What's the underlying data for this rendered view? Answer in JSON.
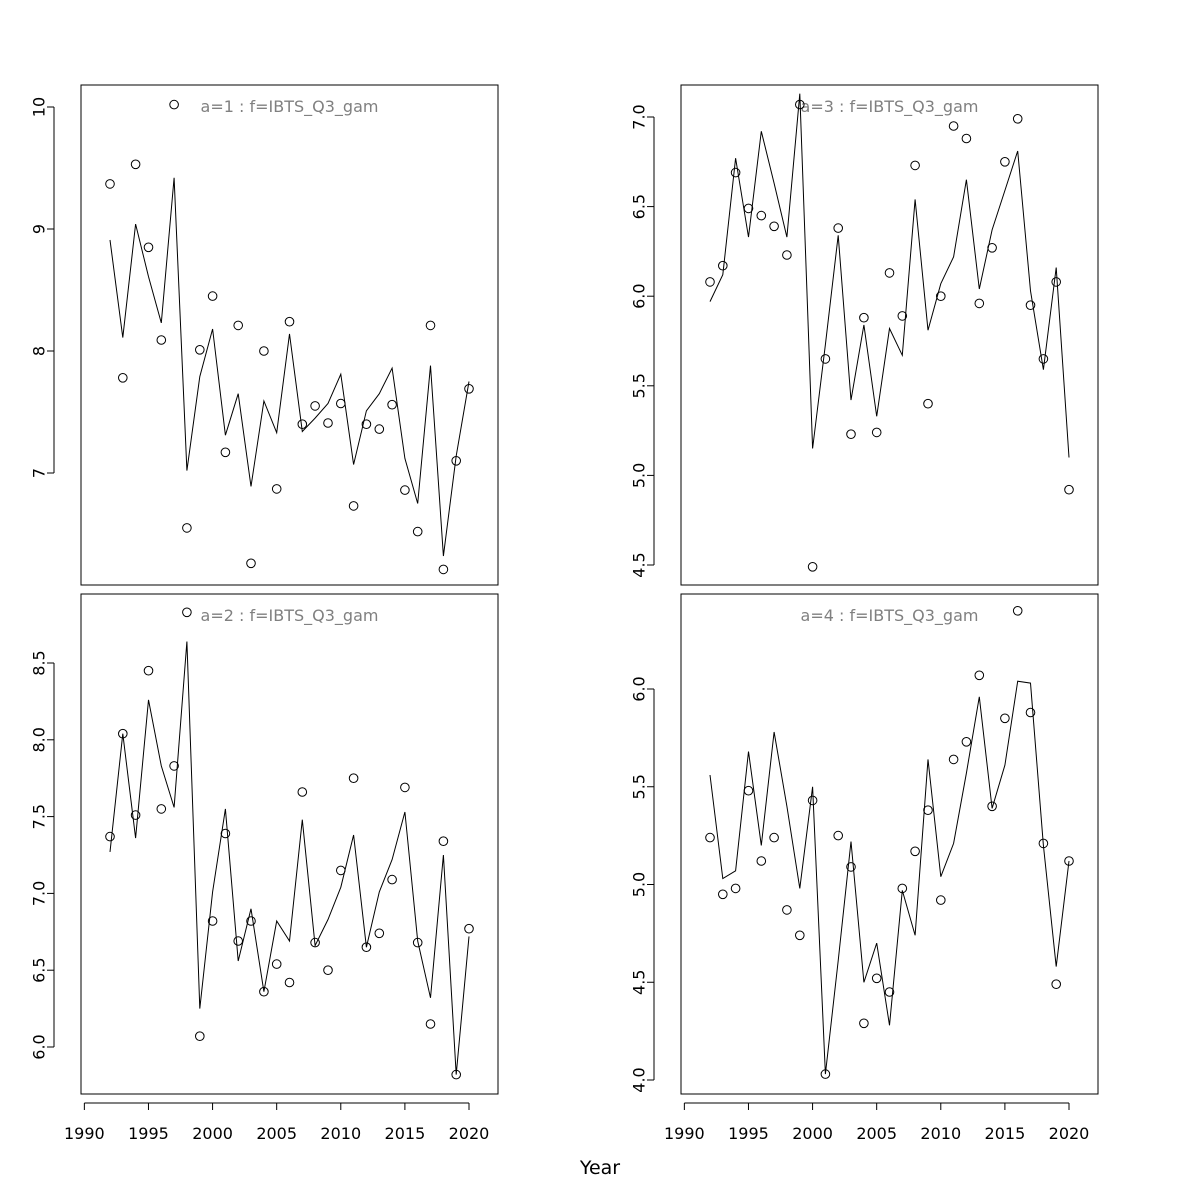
{
  "figure": {
    "xlabel": "Year"
  },
  "chart_data": [
    {
      "type": "scatter",
      "title": "a=1  :  f=IBTS_Q3_gam",
      "xlim": [
        1990,
        2020
      ],
      "ylim": [
        6.1,
        10.2
      ],
      "xticks": [
        1990,
        1995,
        2000,
        2005,
        2010,
        2015,
        2020
      ],
      "yticks": [
        7,
        8,
        9,
        10
      ],
      "x_tick_labels_shown": false,
      "years": [
        1992,
        1993,
        1994,
        1995,
        1996,
        1997,
        1998,
        1999,
        2000,
        2001,
        2002,
        2003,
        2004,
        2005,
        2006,
        2007,
        2008,
        2009,
        2010,
        2011,
        2012,
        2013,
        2014,
        2015,
        2016,
        2017,
        2018,
        2019,
        2020
      ],
      "observed": [
        9.37,
        7.78,
        9.53,
        8.85,
        8.09,
        10.02,
        6.55,
        8.01,
        8.45,
        7.17,
        8.21,
        6.26,
        8.0,
        6.87,
        8.24,
        7.4,
        7.55,
        7.41,
        7.57,
        6.73,
        7.4,
        7.36,
        7.56,
        6.86,
        6.52,
        8.21,
        6.21,
        7.1,
        7.69
      ],
      "fitted": [
        8.91,
        8.11,
        9.04,
        8.61,
        8.23,
        9.42,
        7.02,
        7.79,
        8.18,
        7.31,
        7.65,
        6.89,
        7.59,
        7.33,
        8.14,
        7.34,
        7.45,
        7.57,
        7.81,
        7.07,
        7.51,
        7.65,
        7.86,
        7.12,
        6.75,
        7.88,
        6.32,
        7.14,
        7.75
      ]
    },
    {
      "type": "scatter",
      "title": "a=3  :  f=IBTS_Q3_gam",
      "xlim": [
        1990,
        2020
      ],
      "ylim": [
        4.45,
        7.13
      ],
      "xticks": [
        1990,
        1995,
        2000,
        2005,
        2010,
        2015,
        2020
      ],
      "yticks": [
        4.5,
        5.0,
        5.5,
        6.0,
        6.5,
        7.0
      ],
      "x_tick_labels_shown": false,
      "years": [
        1992,
        1993,
        1994,
        1995,
        1996,
        1997,
        1998,
        1999,
        2000,
        2001,
        2002,
        2003,
        2004,
        2005,
        2006,
        2007,
        2008,
        2009,
        2010,
        2011,
        2012,
        2013,
        2014,
        2015,
        2016,
        2017,
        2018,
        2019,
        2020
      ],
      "observed": [
        6.08,
        6.17,
        6.69,
        6.49,
        6.45,
        6.39,
        6.23,
        7.07,
        4.49,
        5.65,
        6.38,
        5.23,
        5.88,
        5.24,
        6.13,
        5.89,
        6.73,
        5.4,
        6.0,
        6.95,
        6.88,
        5.96,
        6.27,
        6.75,
        6.99,
        5.95,
        5.65,
        6.08,
        4.92
      ],
      "fitted": [
        5.97,
        6.12,
        6.77,
        6.33,
        6.92,
        6.63,
        6.33,
        7.13,
        5.15,
        5.73,
        6.34,
        5.42,
        5.84,
        5.33,
        5.82,
        5.67,
        6.54,
        5.81,
        6.07,
        6.22,
        6.65,
        6.04,
        6.37,
        6.59,
        6.81,
        6.03,
        5.59,
        6.16,
        5.1
      ]
    },
    {
      "type": "scatter",
      "title": "a=2  :  f=IBTS_Q3_gam",
      "xlim": [
        1990,
        2020
      ],
      "ylim": [
        5.8,
        8.83
      ],
      "xticks": [
        1990,
        1995,
        2000,
        2005,
        2010,
        2015,
        2020
      ],
      "yticks": [
        6.0,
        6.5,
        7.0,
        7.5,
        8.0,
        8.5
      ],
      "x_tick_labels_shown": true,
      "years": [
        1992,
        1993,
        1994,
        1995,
        1996,
        1997,
        1998,
        1999,
        2000,
        2001,
        2002,
        2003,
        2004,
        2005,
        2006,
        2007,
        2008,
        2009,
        2010,
        2011,
        2012,
        2013,
        2014,
        2015,
        2016,
        2017,
        2018,
        2019,
        2020
      ],
      "observed": [
        7.37,
        8.04,
        7.51,
        8.45,
        7.55,
        7.83,
        8.83,
        6.07,
        6.82,
        7.39,
        6.69,
        6.82,
        6.36,
        6.54,
        6.42,
        7.66,
        6.68,
        6.5,
        7.15,
        7.75,
        6.65,
        6.74,
        7.09,
        7.69,
        6.68,
        6.15,
        7.34,
        5.82,
        6.77
      ],
      "fitted": [
        7.27,
        8.04,
        7.36,
        8.26,
        7.83,
        7.56,
        8.64,
        6.25,
        7.01,
        7.55,
        6.56,
        6.9,
        6.36,
        6.82,
        6.69,
        7.48,
        6.66,
        6.83,
        7.04,
        7.38,
        6.65,
        7.01,
        7.22,
        7.53,
        6.69,
        6.32,
        7.25,
        5.82,
        6.72
      ]
    },
    {
      "type": "scatter",
      "title": "a=4  :  f=IBTS_Q3_gam",
      "xlim": [
        1990,
        2020
      ],
      "ylim": [
        3.97,
        6.41
      ],
      "xticks": [
        1990,
        1995,
        2000,
        2005,
        2010,
        2015,
        2020
      ],
      "yticks": [
        4.0,
        4.5,
        5.0,
        5.5,
        6.0
      ],
      "x_tick_labels_shown": true,
      "years": [
        1992,
        1993,
        1994,
        1995,
        1996,
        1997,
        1998,
        1999,
        2000,
        2001,
        2002,
        2003,
        2004,
        2005,
        2006,
        2007,
        2008,
        2009,
        2010,
        2011,
        2012,
        2013,
        2014,
        2015,
        2016,
        2017,
        2018,
        2019,
        2020
      ],
      "observed": [
        5.24,
        4.95,
        4.98,
        5.48,
        5.12,
        5.24,
        4.87,
        4.74,
        5.43,
        4.03,
        5.25,
        5.09,
        4.29,
        4.52,
        4.45,
        4.98,
        5.17,
        5.38,
        4.92,
        5.64,
        5.73,
        6.07,
        5.4,
        5.85,
        6.4,
        5.88,
        5.21,
        4.49,
        5.12
      ],
      "fitted": [
        5.56,
        5.03,
        5.07,
        5.68,
        5.2,
        5.78,
        5.4,
        4.98,
        5.5,
        4.03,
        4.61,
        5.22,
        4.5,
        4.7,
        4.28,
        4.97,
        4.74,
        5.64,
        5.04,
        5.21,
        5.57,
        5.96,
        5.39,
        5.61,
        6.04,
        6.03,
        5.2,
        4.58,
        5.12
      ]
    }
  ]
}
